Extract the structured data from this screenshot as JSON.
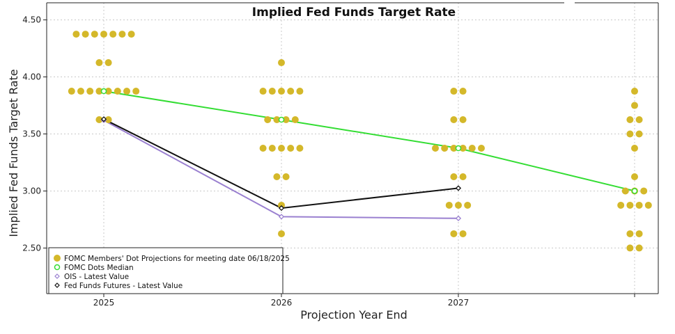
{
  "chart_data": {
    "type": "scatter",
    "title": "Implied Fed Funds Target Rate",
    "xlabel": "Projection Year End",
    "ylabel": "Implied Fed Funds Target Rate",
    "categories": [
      "2025",
      "2026",
      "2027",
      ""
    ],
    "y_ticks": [
      "2.50",
      "3.00",
      "3.50",
      "4.00",
      "4.50"
    ],
    "ylim": [
      2.1,
      4.65
    ],
    "grid": true,
    "legend_position": "bottom-left",
    "series": [
      {
        "name": "FOMC Members' Dot Projections for meeting date 06/18/2025",
        "kind": "dots",
        "color": "#d4b82a",
        "groups": [
          {
            "category": 0,
            "dots": [
              {
                "y": 4.375,
                "count": 7
              },
              {
                "y": 4.125,
                "count": 2
              },
              {
                "y": 3.875,
                "count": 8
              },
              {
                "y": 3.625,
                "count": 2
              }
            ]
          },
          {
            "category": 1,
            "dots": [
              {
                "y": 4.125,
                "count": 1
              },
              {
                "y": 3.875,
                "count": 5
              },
              {
                "y": 3.625,
                "count": 4
              },
              {
                "y": 3.375,
                "count": 5
              },
              {
                "y": 3.125,
                "count": 2
              },
              {
                "y": 2.875,
                "count": 1
              },
              {
                "y": 2.625,
                "count": 1
              }
            ]
          },
          {
            "category": 2,
            "dots": [
              {
                "y": 3.875,
                "count": 2
              },
              {
                "y": 3.625,
                "count": 2
              },
              {
                "y": 3.375,
                "count": 6
              },
              {
                "y": 3.125,
                "count": 2
              },
              {
                "y": 2.875,
                "count": 3
              },
              {
                "y": 2.625,
                "count": 2
              }
            ]
          },
          {
            "category": 3,
            "dots": [
              {
                "y": 3.875,
                "count": 1
              },
              {
                "y": 3.75,
                "count": 1
              },
              {
                "y": 3.625,
                "count": 2
              },
              {
                "y": 3.5,
                "count": 2
              },
              {
                "y": 3.375,
                "count": 1
              },
              {
                "y": 3.125,
                "count": 1
              },
              {
                "y": 3.0,
                "count": 3
              },
              {
                "y": 2.875,
                "count": 4
              },
              {
                "y": 2.625,
                "count": 2
              },
              {
                "y": 2.5,
                "count": 2
              }
            ]
          }
        ]
      },
      {
        "name": "FOMC Dots Median",
        "kind": "line",
        "color": "#33dd33",
        "marker": "circle",
        "values": [
          3.875,
          3.625,
          3.375,
          3.0
        ]
      },
      {
        "name": "OIS - Latest Value",
        "kind": "line",
        "color": "#9a80d0",
        "marker": "diamond",
        "values": [
          3.62,
          2.775,
          2.76,
          null
        ]
      },
      {
        "name": "Fed Funds Futures - Latest Value",
        "kind": "line",
        "color": "#111111",
        "marker": "diamond",
        "values": [
          3.63,
          2.85,
          3.025,
          null
        ]
      }
    ]
  }
}
